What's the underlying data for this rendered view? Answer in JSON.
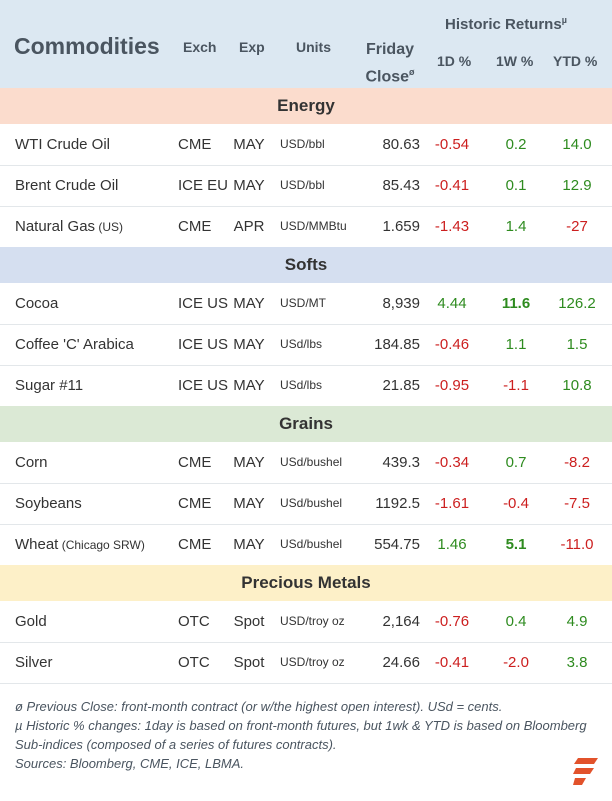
{
  "header": {
    "title": "Commodities",
    "col_exch": "Exch",
    "col_exp": "Exp",
    "col_units": "Units",
    "col_close_line1": "Friday",
    "col_close_line2": "Close",
    "col_close_mark": "ø",
    "historic": "Historic Returns",
    "historic_mark": "µ",
    "col_1d": "1D %",
    "col_1w": "1W %",
    "col_ytd": "YTD %"
  },
  "sections": [
    {
      "name": "Energy",
      "color": "#fbdccd",
      "rows": [
        {
          "name": "WTI Crude Oil",
          "name_note": "",
          "exch": "CME",
          "exp": "MAY",
          "units": "USD/bbl",
          "close": "80.63",
          "d1": "-0.54",
          "w1": "0.2",
          "ytd": "14.0",
          "w1_bold": false
        },
        {
          "name": "Brent Crude Oil",
          "name_note": "",
          "exch": "ICE EU",
          "exp": "MAY",
          "units": "USD/bbl",
          "close": "85.43",
          "d1": "-0.41",
          "w1": "0.1",
          "ytd": "12.9",
          "w1_bold": false
        },
        {
          "name": "Natural Gas",
          "name_note": " (US)",
          "exch": "CME",
          "exp": "APR",
          "units": "USD/MMBtu",
          "close": "1.659",
          "d1": "-1.43",
          "w1": "1.4",
          "ytd": "-27",
          "w1_bold": false
        }
      ]
    },
    {
      "name": "Softs",
      "color": "#d5dff0",
      "rows": [
        {
          "name": "Cocoa",
          "name_note": "",
          "exch": "ICE US",
          "exp": "MAY",
          "units": "USD/MT",
          "close": "8,939",
          "d1": "4.44",
          "w1": "11.6",
          "ytd": "126.2",
          "w1_bold": true
        },
        {
          "name": "Coffee 'C' Arabica",
          "name_note": "",
          "exch": "ICE US",
          "exp": "MAY",
          "units": "USd/lbs",
          "close": "184.85",
          "d1": "-0.46",
          "w1": "1.1",
          "ytd": "1.5",
          "w1_bold": false
        },
        {
          "name": "Sugar #11",
          "name_note": "",
          "exch": "ICE US",
          "exp": "MAY",
          "units": "USd/lbs",
          "close": "21.85",
          "d1": "-0.95",
          "w1": "-1.1",
          "ytd": "10.8",
          "w1_bold": false
        }
      ]
    },
    {
      "name": "Grains",
      "color": "#dbe9d5",
      "rows": [
        {
          "name": "Corn",
          "name_note": "",
          "exch": "CME",
          "exp": "MAY",
          "units": "USd/bushel",
          "close": "439.3",
          "d1": "-0.34",
          "w1": "0.7",
          "ytd": "-8.2",
          "w1_bold": false
        },
        {
          "name": "Soybeans",
          "name_note": "",
          "exch": "CME",
          "exp": "MAY",
          "units": "USd/bushel",
          "close": "1192.5",
          "d1": "-1.61",
          "w1": "-0.4",
          "ytd": "-7.5",
          "w1_bold": false
        },
        {
          "name": "Wheat",
          "name_note": " (Chicago SRW)",
          "exch": "CME",
          "exp": "MAY",
          "units": "USd/bushel",
          "close": "554.75",
          "d1": "1.46",
          "w1": "5.1",
          "ytd": "-11.0",
          "w1_bold": true
        }
      ]
    },
    {
      "name": "Precious Metals",
      "color": "#fdf0c8",
      "rows": [
        {
          "name": "Gold",
          "name_note": "",
          "exch": "OTC",
          "exp": "Spot",
          "units": "USD/troy oz",
          "close": "2,164",
          "d1": "-0.76",
          "w1": "0.4",
          "ytd": "4.9",
          "w1_bold": false
        },
        {
          "name": "Silver",
          "name_note": "",
          "exch": "OTC",
          "exp": "Spot",
          "units": "USD/troy oz",
          "close": "24.66",
          "d1": "-0.41",
          "w1": "-2.0",
          "ytd": "3.8",
          "w1_bold": false
        }
      ]
    }
  ],
  "notes": {
    "note1": "ø Previous Close: front-month contract (or w/the highest open interest). USd = cents.",
    "note2": "µ Historic % changes: 1day is based on front-month futures, but 1wk & YTD is based on Bloomberg Sub-indices (composed of a series of futures contracts).",
    "note3": "Sources: Bloomberg, CME, ICE, LBMA."
  },
  "colors": {
    "negative": "#cc1f1f",
    "positive": "#2e8b1f",
    "logo": "#e2522b"
  },
  "logo_icon": "brand-stripes-icon"
}
